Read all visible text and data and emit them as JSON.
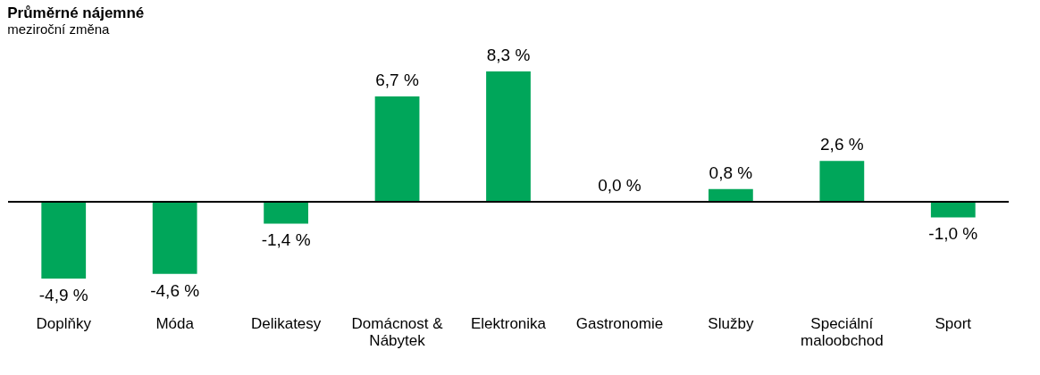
{
  "chart_data": {
    "type": "bar",
    "title": "Průměrné nájemné",
    "subtitle": "meziroční změna",
    "categories": [
      "Doplňky",
      "Móda",
      "Delikatesy",
      "Domácnost & Nábytek",
      "Elektronika",
      "Gastronomie",
      "Služby",
      "Speciální maloobchod",
      "Sport"
    ],
    "values": [
      -4.9,
      -4.6,
      -1.4,
      6.7,
      8.3,
      0.0,
      0.8,
      2.6,
      -1.0
    ],
    "value_labels": [
      "-4,9 %",
      "-4,6 %",
      "-1,4 %",
      "6,7 %",
      "8,3 %",
      "0,0 %",
      "0,8 %",
      "2,6 %",
      "-1,0 %"
    ],
    "color": "#00a65a",
    "grid": false
  }
}
